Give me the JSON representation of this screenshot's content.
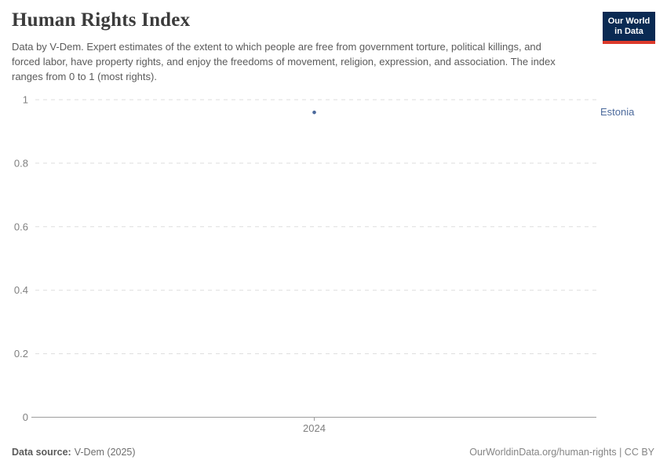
{
  "header": {
    "title": "Human Rights Index",
    "subtitle": "Data by V-Dem. Expert estimates of the extent to which people are free from government torture, political killings, and forced labor, have property rights, and enjoy the freedoms of movement, religion, expression, and association. The index ranges from 0 to 1 (most rights).",
    "logo": {
      "line1": "Our World",
      "line2": "in Data"
    }
  },
  "chart_data": {
    "type": "scatter",
    "title": "Human Rights Index",
    "x": [
      2024
    ],
    "series": [
      {
        "name": "Estonia",
        "values": [
          0.96
        ],
        "color": "#4c6a9c"
      }
    ],
    "xlabel": "",
    "ylabel": "",
    "ylim": [
      0,
      1
    ],
    "yticks": [
      0,
      0.2,
      0.4,
      0.6,
      0.8,
      1
    ],
    "ytick_labels": [
      "0",
      "0.2",
      "0.4",
      "0.6",
      "0.8",
      "1"
    ],
    "xticks": [
      2024
    ],
    "xtick_labels": [
      "2024"
    ],
    "grid": "horizontal-dashed",
    "legend_position": "entity-label-right"
  },
  "footer": {
    "source_label": "Data source:",
    "source_value": "V-Dem (2025)",
    "credit": "OurWorldinData.org/human-rights | CC BY"
  },
  "colors": {
    "accent_blue": "#4c6a9c",
    "logo_navy": "#0a2a53",
    "logo_red": "#dc3a2b",
    "grid": "#dddddd",
    "axis": "#9e9e9e",
    "tick_text": "#808080",
    "title_text": "#3b3b3b",
    "subtitle_text": "#5b5b5b"
  }
}
